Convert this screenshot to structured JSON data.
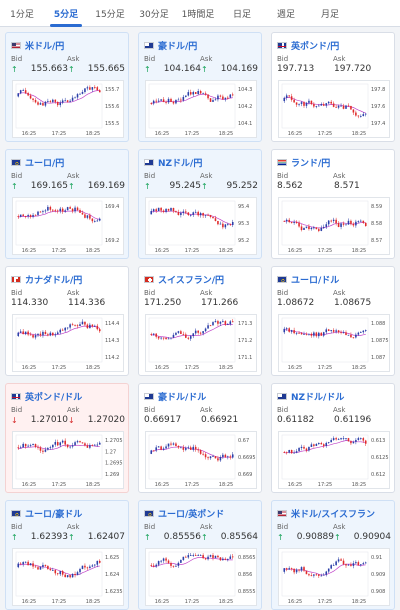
{
  "tabs": [
    "1分足",
    "5分足",
    "15分足",
    "30分足",
    "1時間足",
    "日足",
    "週足",
    "月足"
  ],
  "active_tab": 1,
  "bid_label": "Bid",
  "ask_label": "Ask",
  "colors": {
    "positive_bg": "#eef5fd",
    "negative_bg": "#fff1f1",
    "up_arrow": "#18a35a",
    "down_arrow": "#d62c2c",
    "ma_line": "#c044c8",
    "candle_bull": "#2a3ea8",
    "candle_bear": "#e02a2a"
  },
  "pairs": [
    {
      "name": "米ドル/円",
      "flag": "us-flag",
      "bid": "155.663",
      "ask": "155.665",
      "direction": "up",
      "y_labels": [
        "155.7",
        "155.6",
        "155.5"
      ],
      "times": [
        "16:25",
        "17:25",
        "18:25"
      ]
    },
    {
      "name": "豪ドル/円",
      "flag": "au-flag",
      "bid": "104.164",
      "ask": "104.169",
      "direction": "up",
      "y_labels": [
        "104.3",
        "104.2",
        "104.1"
      ],
      "times": [
        "16:25",
        "17:25",
        "18:25"
      ]
    },
    {
      "name": "英ポンド/円",
      "flag": "uk-flag",
      "bid": "197.713",
      "ask": "197.720",
      "direction": "none",
      "y_labels": [
        "197.8",
        "197.6",
        "197.4"
      ],
      "times": [
        "16:25",
        "17:25",
        "18:25"
      ]
    },
    {
      "name": "ユーロ/円",
      "flag": "eu-flag",
      "bid": "169.165",
      "ask": "169.169",
      "direction": "up",
      "y_labels": [
        "169.4",
        "169.2"
      ],
      "times": [
        "16:25",
        "17:25",
        "18:25"
      ]
    },
    {
      "name": "NZドル/円",
      "flag": "nz-flag",
      "bid": "95.245",
      "ask": "95.252",
      "direction": "up",
      "y_labels": [
        "95.4",
        "95.3",
        "95.2"
      ],
      "times": [
        "16:25",
        "17:25",
        "18:25"
      ]
    },
    {
      "name": "ランド/円",
      "flag": "za-flag",
      "bid": "8.562",
      "ask": "8.571",
      "direction": "none",
      "y_labels": [
        "8.59",
        "8.58",
        "8.57"
      ],
      "times": [
        "16:25",
        "17:25",
        "18:25"
      ]
    },
    {
      "name": "カナダドル/円",
      "flag": "ca-flag",
      "bid": "114.330",
      "ask": "114.336",
      "direction": "none",
      "y_labels": [
        "114.4",
        "114.3",
        "114.2"
      ],
      "times": [
        "16:25",
        "17:25",
        "18:25"
      ]
    },
    {
      "name": "スイスフラン/円",
      "flag": "ch-flag",
      "bid": "171.250",
      "ask": "171.266",
      "direction": "none",
      "y_labels": [
        "171.3",
        "171.2",
        "171.1"
      ],
      "times": [
        "16:25",
        "17:25",
        "18:25"
      ]
    },
    {
      "name": "ユーロ/ドル",
      "flag": "eu-flag",
      "bid": "1.08672",
      "ask": "1.08675",
      "direction": "none",
      "y_labels": [
        "1.088",
        "1.0875",
        "1.087"
      ],
      "times": [
        "16:25",
        "17:25",
        "18:25"
      ]
    },
    {
      "name": "英ポンド/ドル",
      "flag": "uk-flag",
      "bid": "1.27010",
      "ask": "1.27020",
      "direction": "down",
      "y_labels": [
        "1.2705",
        "1.27",
        "1.2695",
        "1.269"
      ],
      "times": [
        "16:25",
        "17:25",
        "18:25"
      ]
    },
    {
      "name": "豪ドル/ドル",
      "flag": "au-flag",
      "bid": "0.66917",
      "ask": "0.66921",
      "direction": "none",
      "y_labels": [
        "0.67",
        "0.6695",
        "0.669"
      ],
      "times": [
        "16:25",
        "17:25",
        "18:25"
      ]
    },
    {
      "name": "NZドル/ドル",
      "flag": "nz-flag",
      "bid": "0.61182",
      "ask": "0.61196",
      "direction": "none",
      "y_labels": [
        "0.613",
        "0.6125",
        "0.612"
      ],
      "times": [
        "16:25",
        "17:25",
        "18:25"
      ]
    },
    {
      "name": "ユーロ/豪ドル",
      "flag": "eu-flag",
      "bid": "1.62393",
      "ask": "1.62407",
      "direction": "up",
      "y_labels": [
        "1.625",
        "1.624",
        "1.6235"
      ],
      "times": [
        "16:25",
        "17:25",
        "18:25"
      ]
    },
    {
      "name": "ユーロ/英ポンド",
      "flag": "eu-flag",
      "bid": "0.85556",
      "ask": "0.85564",
      "direction": "up",
      "y_labels": [
        "0.8565",
        "0.856",
        "0.8555"
      ],
      "times": [
        "16:25",
        "17:25",
        "18:25"
      ]
    },
    {
      "name": "米ドル/スイスフラン",
      "flag": "us-flag",
      "bid": "0.90889",
      "ask": "0.90904",
      "direction": "up",
      "y_labels": [
        "0.91",
        "0.909",
        "0.908"
      ],
      "times": [
        "16:25",
        "17:25",
        "18:25"
      ]
    }
  ]
}
